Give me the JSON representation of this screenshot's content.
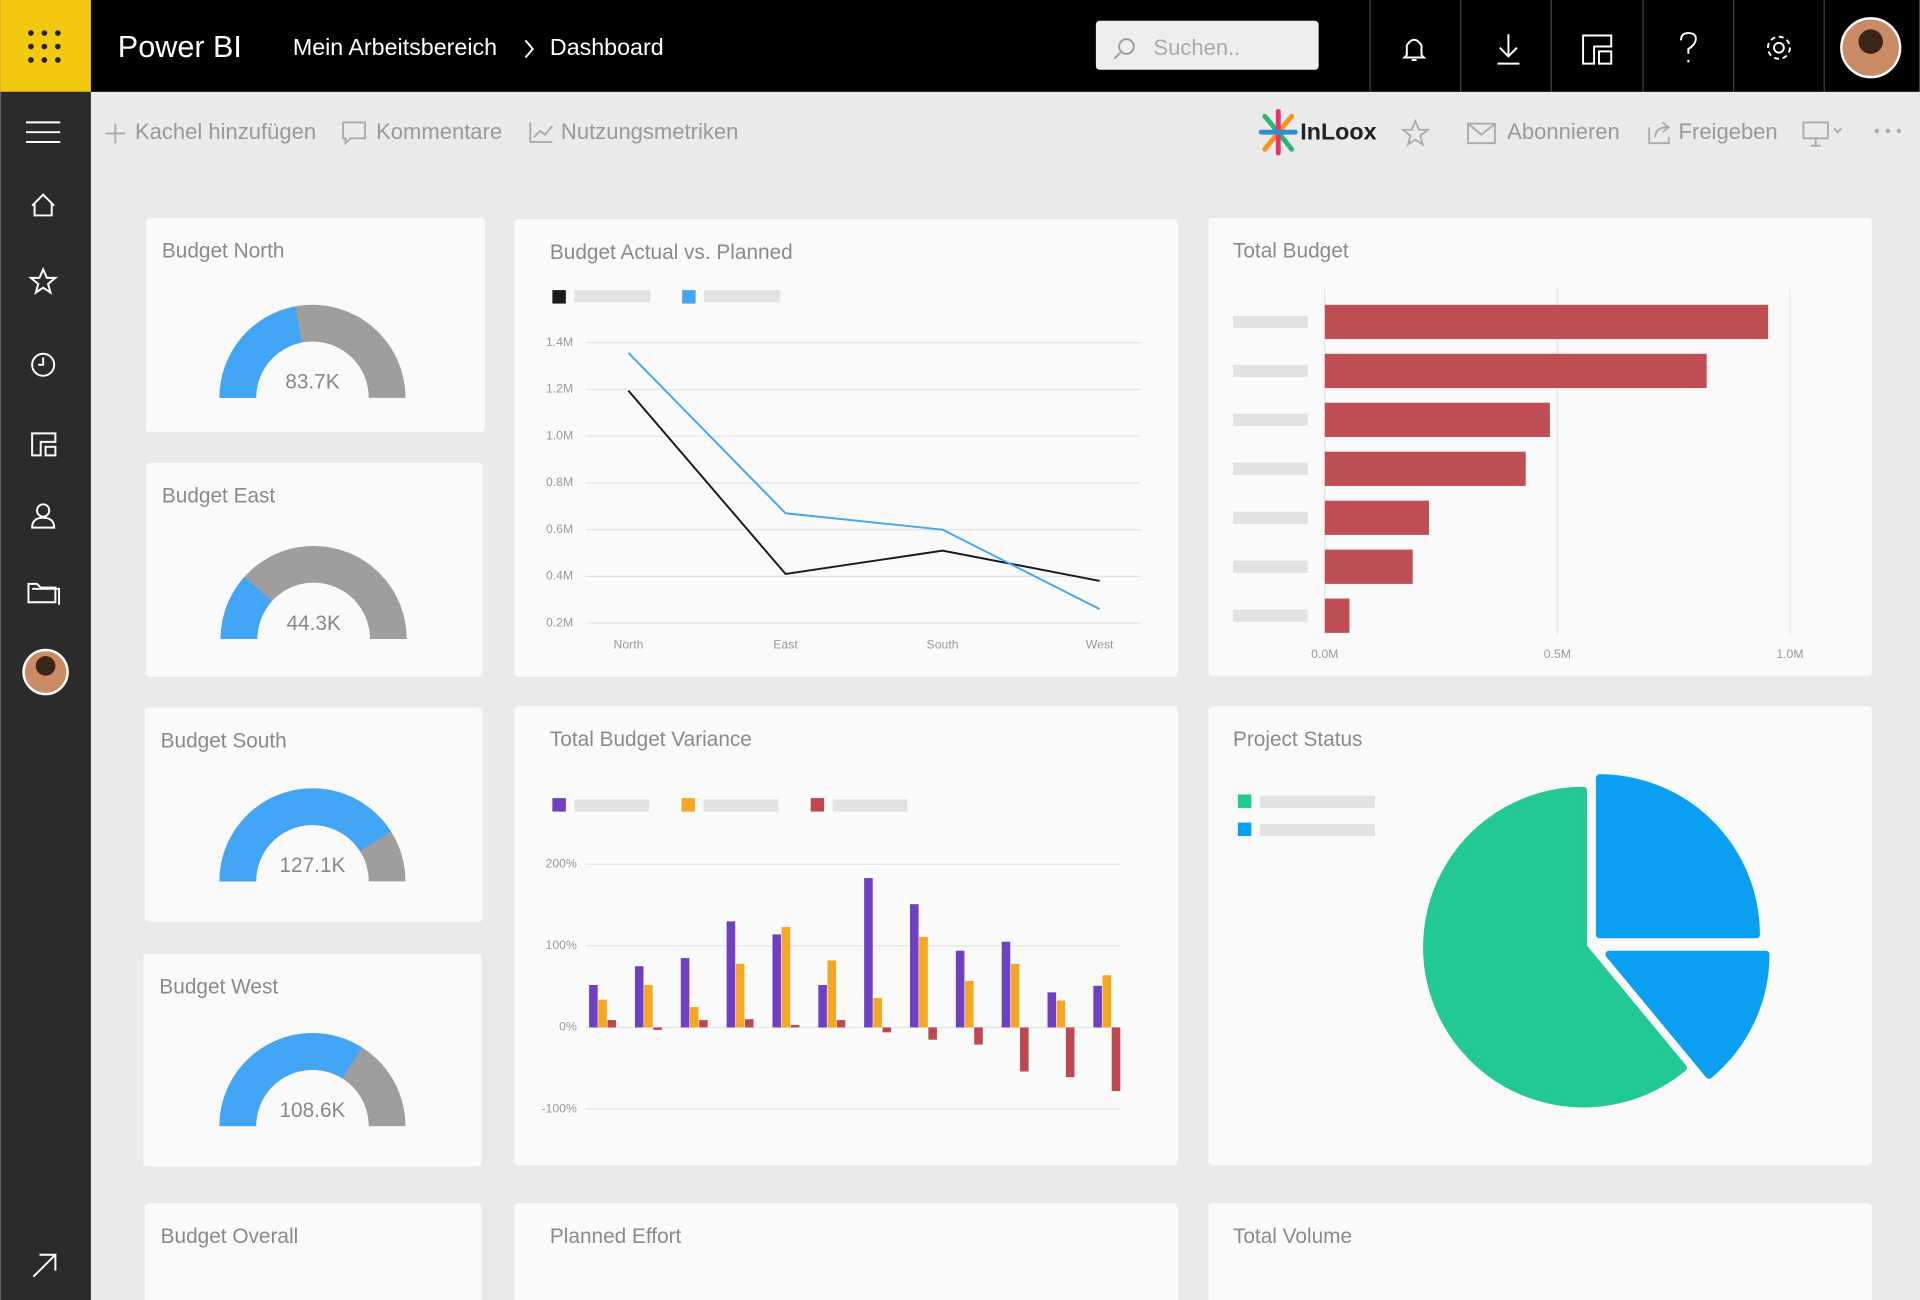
{
  "header": {
    "app_name": "Power BI",
    "breadcrumb": [
      "Mein Arbeitsbereich",
      "Dashboard"
    ],
    "search_placeholder": "Suchen.."
  },
  "toolbar": {
    "left_actions": [
      "Kachel hinzufügen",
      "Kommentare",
      "Nutzungsmetriken"
    ],
    "logo": "InLoox",
    "right_actions": [
      "Abonnieren",
      "Freigeben"
    ]
  },
  "chart_data": [
    {
      "type": "gauge",
      "title": "Budget North",
      "value": 83700,
      "value_label": "83.7K",
      "range": [
        0,
        190000
      ],
      "color": "#42a5f5",
      "track_color": "#9e9e9e"
    },
    {
      "type": "gauge",
      "title": "Budget East",
      "value": 44300,
      "value_label": "44.3K",
      "range": [
        0,
        190000
      ],
      "color": "#42a5f5",
      "track_color": "#9e9e9e"
    },
    {
      "type": "gauge",
      "title": "Budget South",
      "value": 127100,
      "value_label": "127.1K",
      "range": [
        0,
        155000
      ],
      "color": "#42a5f5",
      "track_color": "#9e9e9e"
    },
    {
      "type": "gauge",
      "title": "Budget West",
      "value": 108600,
      "value_label": "108.6K",
      "range": [
        0,
        160000
      ],
      "color": "#42a5f5",
      "track_color": "#9e9e9e"
    },
    {
      "type": "line",
      "title": "Budget Actual vs. Planned",
      "categories": [
        "North",
        "East",
        "South",
        "West"
      ],
      "series": [
        {
          "color": "#1a1a1a",
          "values": [
            1195000,
            410000,
            510000,
            380000
          ]
        },
        {
          "color": "#42a5f5",
          "values": [
            1357000,
            670000,
            600000,
            260000
          ]
        }
      ],
      "ylim": [
        200000,
        1400000
      ],
      "yticks": [
        {
          "value": 200000,
          "label": "0.2M"
        },
        {
          "value": 400000,
          "label": "0.4M"
        },
        {
          "value": 600000,
          "label": "0.6M"
        },
        {
          "value": 800000,
          "label": "0.8M"
        },
        {
          "value": 1000000,
          "label": "1.0M"
        },
        {
          "value": 1200000,
          "label": "1.2M"
        },
        {
          "value": 1400000,
          "label": "1.4M"
        }
      ],
      "grid": true
    },
    {
      "type": "hbar",
      "title": "Total Budget",
      "categories": [
        null,
        null,
        null,
        null,
        null,
        null,
        null
      ],
      "values": [
        953000,
        821000,
        484000,
        432000,
        224000,
        189000,
        53000
      ],
      "color": "#bf4f55",
      "xlim": [
        0,
        1000000
      ],
      "xticks": [
        {
          "value": 0,
          "label": "0.0M"
        },
        {
          "value": 500000,
          "label": "0.5M"
        },
        {
          "value": 1000000,
          "label": "1.0M"
        }
      ],
      "grid": true
    },
    {
      "type": "bar",
      "title": "Total Budget Variance",
      "categories": [
        null,
        null,
        null,
        null,
        null,
        null,
        null,
        null,
        null,
        null,
        null,
        null
      ],
      "series": [
        {
          "color": "#6f3fc4",
          "values": [
            52,
            75,
            85,
            130,
            114,
            52,
            183,
            151,
            94,
            105,
            43,
            51
          ]
        },
        {
          "color": "#f5a623",
          "values": [
            34,
            52,
            25,
            78,
            123,
            82,
            36,
            111,
            57,
            78,
            33,
            64
          ]
        },
        {
          "color": "#bf4750",
          "values": [
            9,
            -3,
            9,
            10,
            3,
            9,
            -6,
            -15,
            -21,
            -54,
            -61,
            -78
          ]
        }
      ],
      "ylim": [
        -100,
        200
      ],
      "yticks": [
        {
          "value": -100,
          "label": "-100%"
        },
        {
          "value": 0,
          "label": "0%"
        },
        {
          "value": 100,
          "label": "100%"
        },
        {
          "value": 200,
          "label": "200%"
        }
      ],
      "grid": true
    },
    {
      "type": "pie",
      "title": "Project Status",
      "values": [
        25,
        14,
        61
      ],
      "colors": [
        "#0a9ff0",
        "#0a9ff0",
        "#22c994"
      ],
      "legend_colors": [
        "#22c994",
        "#0a9ff0"
      ]
    },
    {
      "type": "empty",
      "title": "Budget Overall"
    },
    {
      "type": "empty",
      "title": "Planned Effort"
    },
    {
      "type": "empty",
      "title": "Total Volume"
    }
  ]
}
